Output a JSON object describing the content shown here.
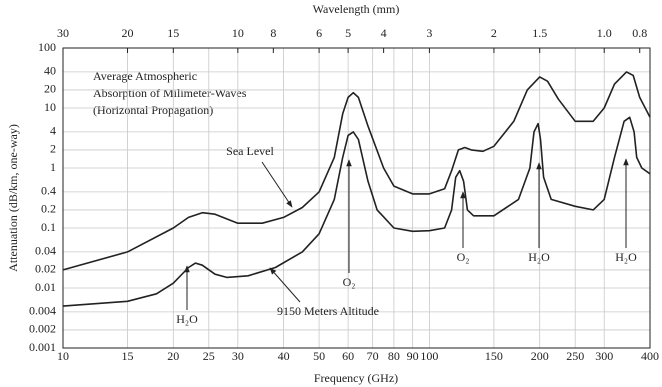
{
  "chart_data": {
    "type": "line",
    "title": [
      "Average Atmospheric",
      "Absorption of Milimeter-Waves",
      "(Horizontal Propagation)"
    ],
    "x_label": "Frequency (GHz)",
    "x2_label": "Wavelength (mm)",
    "y_label": "Attenuation (dB/km, one-way)",
    "log_x": true,
    "log_y": true,
    "grid": true,
    "xlim": [
      10,
      400
    ],
    "xticks": [
      10,
      15,
      20,
      25,
      30,
      40,
      50,
      60,
      70,
      80,
      90,
      100,
      150,
      200,
      250,
      300,
      400
    ],
    "x2lim": [
      30,
      0.75
    ],
    "x2ticks": [
      30,
      20,
      15,
      10,
      8,
      6,
      5,
      4,
      3,
      2,
      1.5,
      {
        "value": 1,
        "label": "1.0"
      },
      0.8
    ],
    "ylim": [
      0.001,
      100
    ],
    "yticks": [
      0.001,
      0.002,
      0.004,
      0.01,
      0.02,
      0.04,
      0.1,
      0.2,
      0.4,
      1,
      2,
      4,
      10,
      20,
      40,
      100
    ],
    "series": [
      {
        "name": "Sea Level",
        "color": "#222222",
        "x": [
          10,
          15,
          20,
          22,
          24,
          26,
          30,
          35,
          40,
          45,
          50,
          55,
          58,
          60,
          62,
          64,
          68,
          75,
          80,
          90,
          100,
          110,
          115,
          120,
          125,
          130,
          140,
          150,
          170,
          185,
          200,
          210,
          225,
          250,
          280,
          300,
          320,
          345,
          360,
          375,
          400
        ],
        "values": [
          0.02,
          0.04,
          0.1,
          0.15,
          0.18,
          0.17,
          0.12,
          0.12,
          0.15,
          0.22,
          0.4,
          1.5,
          8,
          15,
          18,
          15,
          5,
          1,
          0.5,
          0.37,
          0.37,
          0.45,
          0.9,
          2,
          2.2,
          2,
          1.9,
          2.3,
          6,
          20,
          33,
          28,
          14,
          6,
          6,
          10,
          25,
          40,
          35,
          15,
          7
        ]
      },
      {
        "name": "9150 Meters Altitude",
        "color": "#222222",
        "x": [
          10,
          15,
          18,
          20,
          22,
          23,
          24,
          26,
          28,
          32,
          38,
          45,
          50,
          55,
          58,
          60,
          62,
          64,
          68,
          72,
          80,
          90,
          100,
          110,
          115,
          118,
          121,
          124,
          127,
          132,
          150,
          175,
          188,
          193,
          198,
          201,
          205,
          215,
          250,
          280,
          300,
          320,
          340,
          352,
          362,
          368,
          380,
          400
        ],
        "values": [
          0.005,
          0.006,
          0.008,
          0.012,
          0.022,
          0.026,
          0.024,
          0.017,
          0.015,
          0.016,
          0.022,
          0.04,
          0.08,
          0.3,
          1.5,
          3.5,
          4,
          3,
          0.6,
          0.2,
          0.1,
          0.088,
          0.09,
          0.1,
          0.2,
          0.7,
          0.9,
          0.6,
          0.2,
          0.16,
          0.16,
          0.3,
          1,
          4,
          5.5,
          3,
          0.7,
          0.3,
          0.23,
          0.2,
          0.3,
          1.5,
          6,
          7,
          4,
          1.5,
          1,
          0.8
        ]
      }
    ],
    "annotations": [
      {
        "text": "O₂"
      },
      {
        "text": "H₂O"
      },
      {
        "text": "O₂"
      },
      {
        "text": "H₂O"
      },
      {
        "text": "H₂O"
      }
    ]
  }
}
